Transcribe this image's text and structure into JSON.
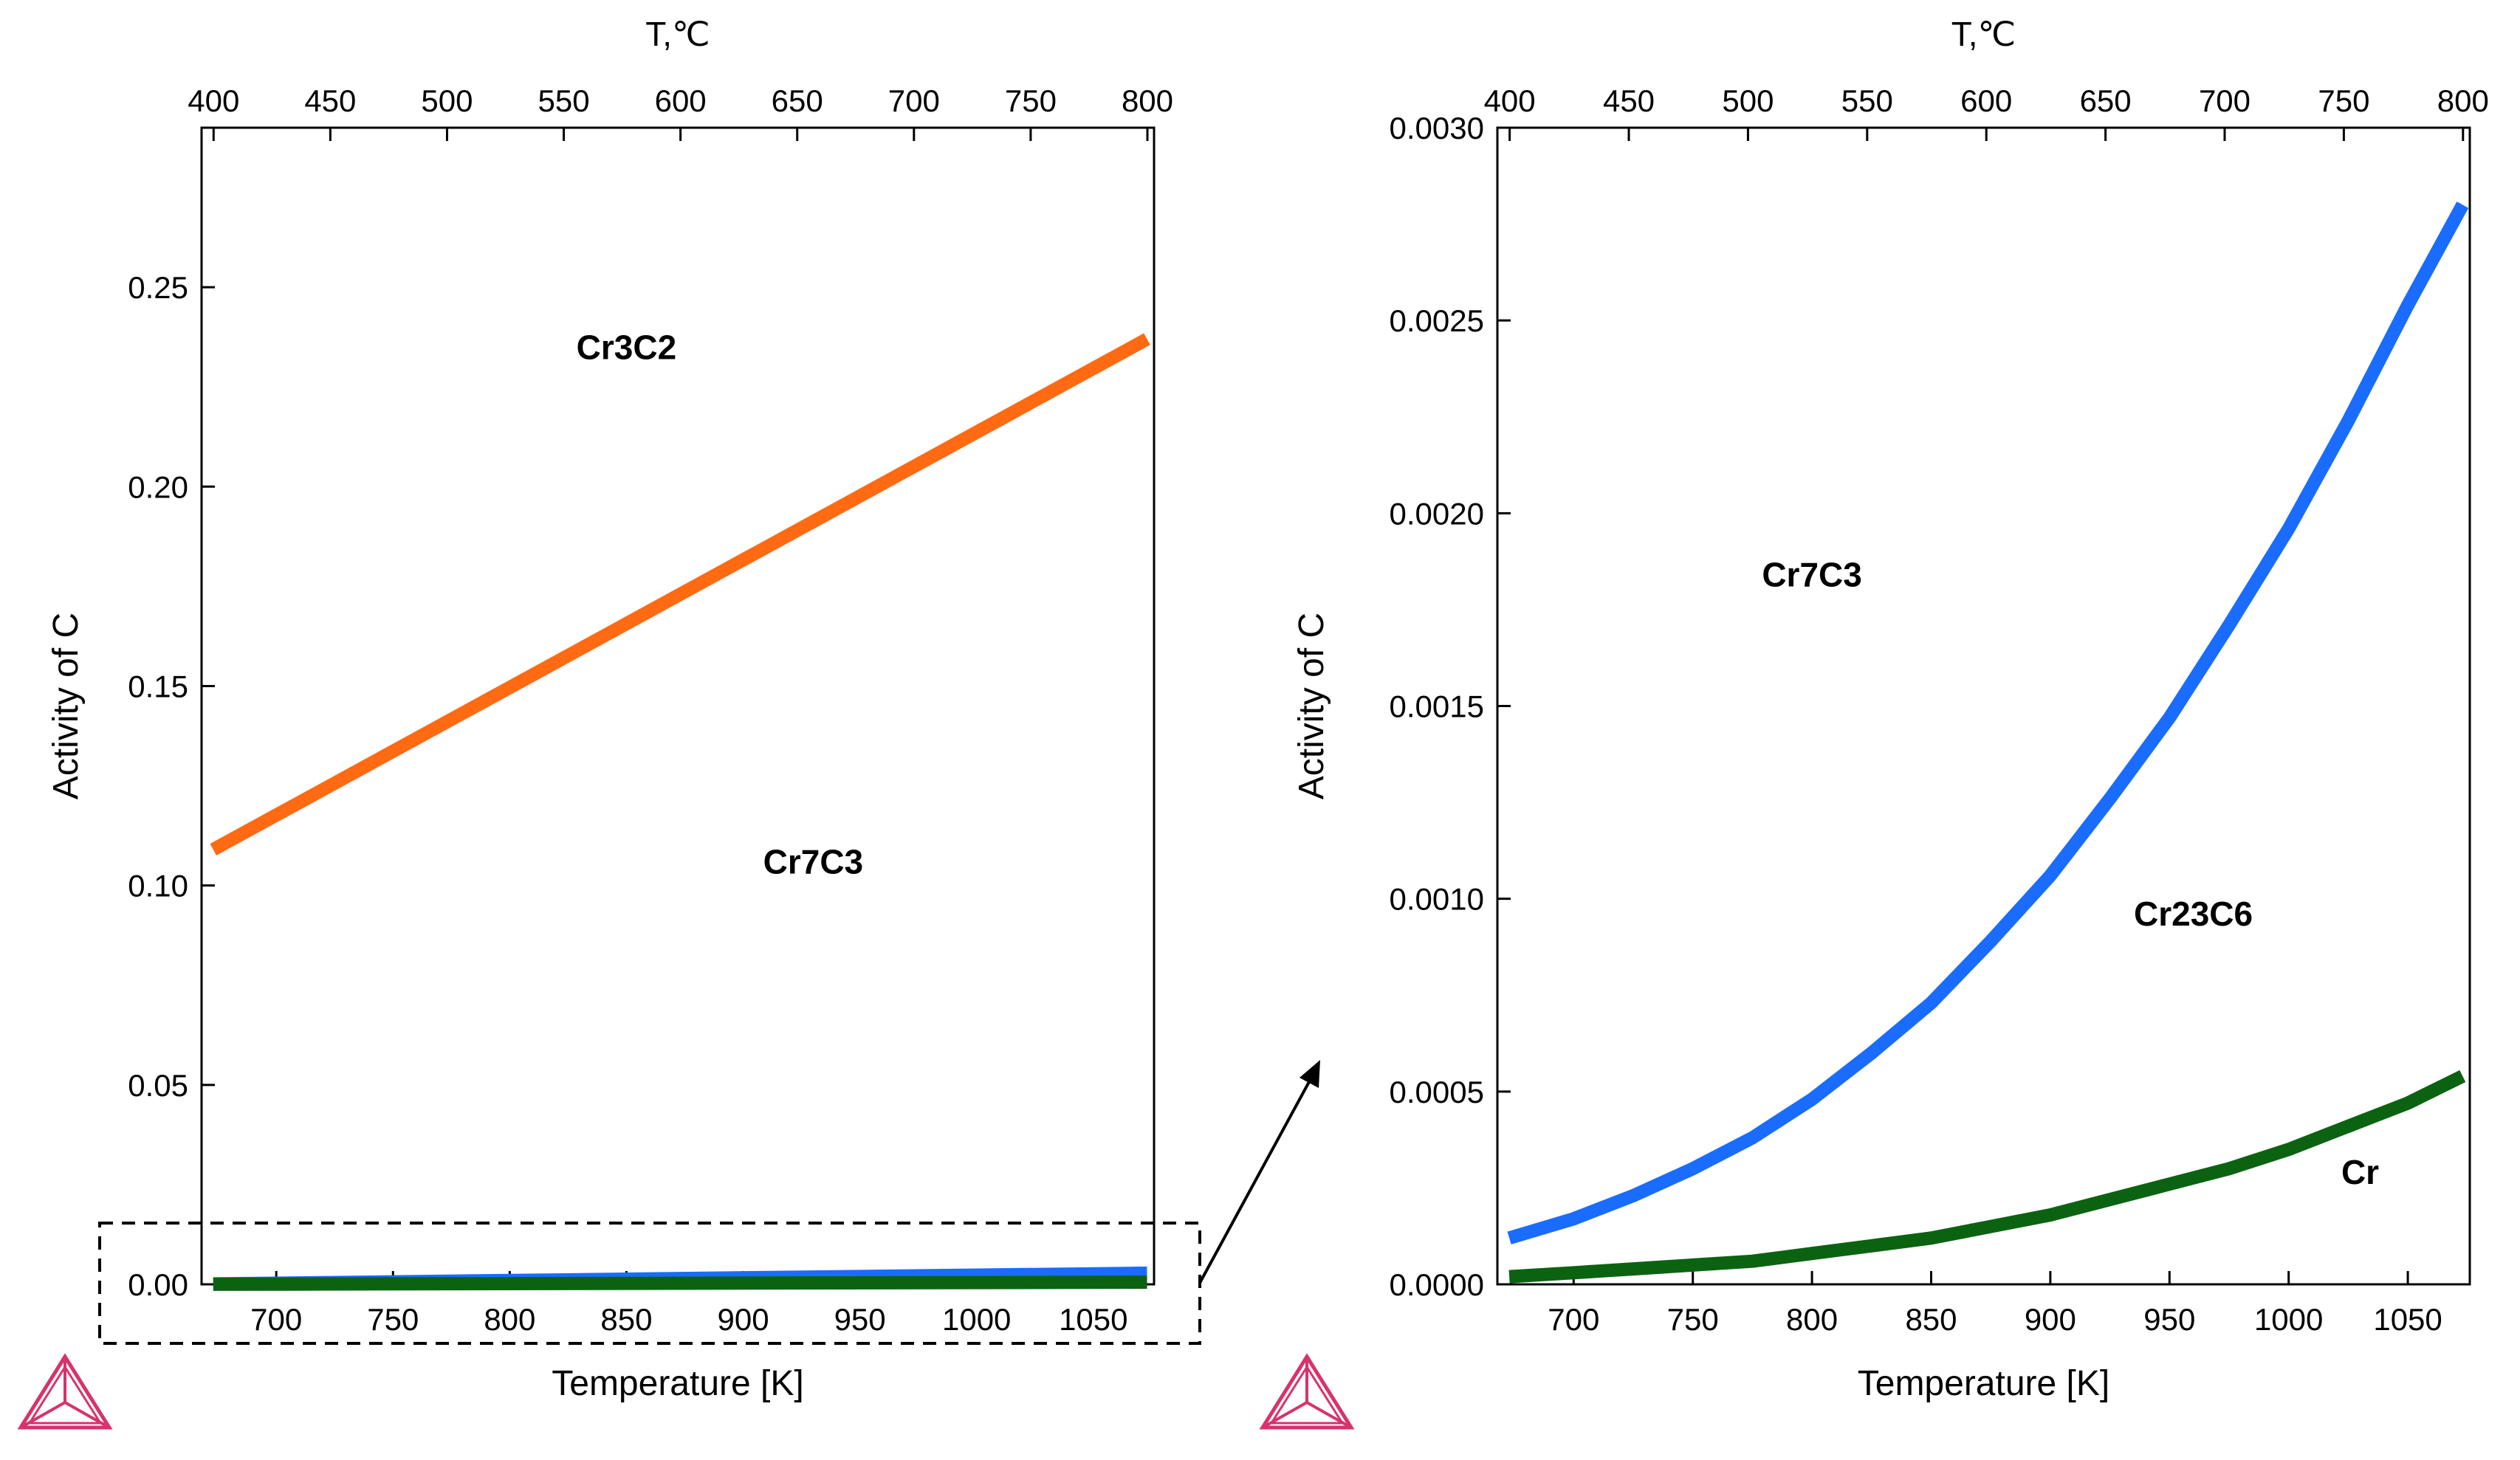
{
  "chart_data": [
    {
      "type": "line",
      "panel": "left",
      "xlabel": "Temperature [K]",
      "ylabel": "Activity of C",
      "top_axis_label": "T,℃",
      "xlim": [
        668,
        1076
      ],
      "ylim": [
        0,
        0.29
      ],
      "x_ticks": [
        700,
        750,
        800,
        850,
        900,
        950,
        1000,
        1050
      ],
      "y_ticks": [
        0.0,
        0.05,
        0.1,
        0.15,
        0.2,
        0.25
      ],
      "y_tick_labels": [
        "0.00",
        "0.05",
        "0.10",
        "0.15",
        "0.20",
        "0.25"
      ],
      "top_ticks": [
        400,
        450,
        500,
        550,
        600,
        650,
        700,
        750,
        800
      ],
      "series": [
        {
          "name": "Cr3C2/Cr7C3 boundary",
          "color": "#ff6a13",
          "x": [
            673,
            1073
          ],
          "y": [
            0.109,
            0.237
          ]
        },
        {
          "name": "Cr7C3/Cr23C6 boundary",
          "color": "#1a6cff",
          "x": [
            673,
            1073
          ],
          "y": [
            0.00012,
            0.0028
          ]
        },
        {
          "name": "Cr23C6/Cr boundary",
          "color": "#0b6312",
          "x": [
            673,
            1073
          ],
          "y": [
            2e-05,
            0.00054
          ]
        }
      ],
      "annotations": [
        {
          "text": "Cr3C2",
          "x": 850,
          "y": 0.232
        },
        {
          "text": "Cr7C3",
          "x": 930,
          "y": 0.103
        }
      ]
    },
    {
      "type": "line",
      "panel": "right",
      "xlabel": "Temperature [K]",
      "ylabel": "Activity of C",
      "top_axis_label": "T,℃",
      "xlim": [
        668,
        1076
      ],
      "ylim": [
        0,
        0.003
      ],
      "x_ticks": [
        700,
        750,
        800,
        850,
        900,
        950,
        1000,
        1050
      ],
      "y_ticks": [
        0.0,
        0.0005,
        0.001,
        0.0015,
        0.002,
        0.0025,
        0.003
      ],
      "y_tick_labels": [
        "0.0000",
        "0.0005",
        "0.0010",
        "0.0015",
        "0.0020",
        "0.0025",
        "0.0030"
      ],
      "top_ticks": [
        400,
        450,
        500,
        550,
        600,
        650,
        700,
        750,
        800
      ],
      "series": [
        {
          "name": "Cr7C3/Cr23C6 boundary",
          "color": "#1a6cff",
          "x": [
            673,
            700,
            725,
            750,
            775,
            800,
            825,
            850,
            875,
            900,
            925,
            950,
            975,
            1000,
            1025,
            1050,
            1073
          ],
          "y": [
            0.00012,
            0.00017,
            0.00023,
            0.0003,
            0.00038,
            0.00048,
            0.0006,
            0.00073,
            0.00089,
            0.00106,
            0.00126,
            0.00147,
            0.00171,
            0.00196,
            0.00224,
            0.00254,
            0.0028
          ]
        },
        {
          "name": "Cr23C6/Cr boundary",
          "color": "#0b6312",
          "x": [
            673,
            700,
            725,
            750,
            775,
            800,
            825,
            850,
            875,
            900,
            925,
            950,
            975,
            1000,
            1025,
            1050,
            1073
          ],
          "y": [
            2e-05,
            3e-05,
            4e-05,
            5e-05,
            6e-05,
            8e-05,
            0.0001,
            0.00012,
            0.00015,
            0.00018,
            0.00022,
            0.00026,
            0.0003,
            0.00035,
            0.00041,
            0.00047,
            0.00054
          ]
        }
      ],
      "annotations": [
        {
          "text": "Cr7C3",
          "x": 800,
          "y": 0.00181
        },
        {
          "text": "Cr23C6",
          "x": 960,
          "y": 0.00093
        },
        {
          "text": "Cr",
          "x": 1030,
          "y": 0.00026
        }
      ]
    }
  ],
  "colors": {
    "logo": "#d6336c",
    "axis": "#000000"
  },
  "icons": {
    "logo": "thermo-calc-logo-icon"
  }
}
